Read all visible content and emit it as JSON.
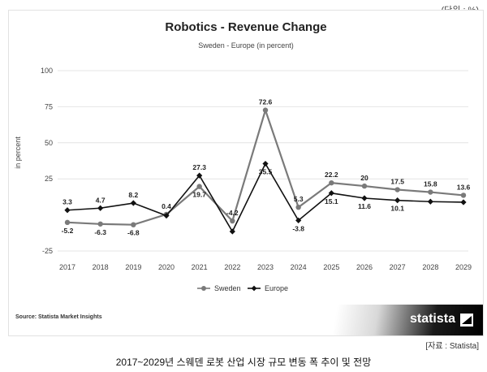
{
  "unit_note": "(단위 : %)",
  "source": "Source: Statista Market Insights",
  "brand": "statista",
  "source_credit": "[자료 : Statista]",
  "caption": "2017~2029년 스웨덴 로봇 산업 시장 규모 변동 폭 추이 및 전망",
  "chart_data": {
    "type": "line",
    "title": "Robotics - Revenue Change",
    "subtitle": "Sweden - Europe (in percent)",
    "xlabel": "",
    "ylabel": "in percent",
    "x": [
      "2017",
      "2018",
      "2019",
      "2020",
      "2021",
      "2022",
      "2023",
      "2024",
      "2025",
      "2026",
      "2027",
      "2028",
      "2029"
    ],
    "y_ticks": [
      "-25",
      "25",
      "50",
      "75",
      "100"
    ],
    "ylim": [
      -25,
      100
    ],
    "grid": true,
    "legend": "bottom-center",
    "series": [
      {
        "name": "Sweden",
        "color": "#7a7a7a",
        "marker": "circle",
        "values": [
          -5.2,
          -6.3,
          -6.8,
          0.4,
          19.7,
          -4.2,
          72.6,
          5.3,
          22.2,
          20,
          17.5,
          15.8,
          13.6
        ],
        "labels": [
          "-5.2",
          "-6.3",
          "-6.8",
          "0.4",
          "19.7",
          "-4.2",
          "72.6",
          "5.3",
          "22.2",
          "20",
          "17.5",
          "15.8",
          "13.6"
        ]
      },
      {
        "name": "Europe",
        "color": "#111111",
        "marker": "diamond",
        "values": [
          3.3,
          4.7,
          8.2,
          -0.5,
          27.3,
          -11.5,
          35.5,
          -3.8,
          15.1,
          11.6,
          10.1,
          9.2,
          8.8
        ],
        "labels": [
          "3.3",
          "4.7",
          "8.2",
          "",
          "27.3",
          "",
          "35.5",
          "-3.8",
          "15.1",
          "11.6",
          "10.1",
          "",
          ""
        ]
      }
    ]
  }
}
